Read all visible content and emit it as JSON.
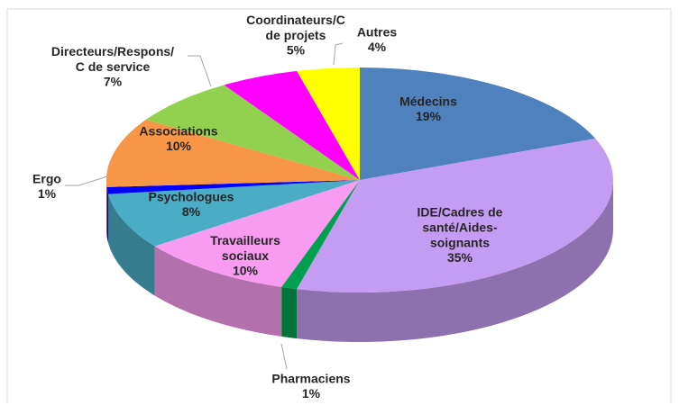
{
  "chart_data": {
    "type": "pie",
    "categories": [
      "Médecins",
      "IDE/Cadres de\nsanté/Aides-\nsoignants",
      "Pharmaciens",
      "Travailleurs\nsociaux",
      "Psychologues",
      "Ergo",
      "Associations",
      "Directeurs/Respons/\nC de service",
      "Coordinateurs/C\nde projets",
      "Autres"
    ],
    "values": [
      19,
      35,
      1,
      10,
      8,
      1,
      10,
      7,
      5,
      4
    ],
    "value_labels": [
      "19%",
      "35%",
      "1%",
      "10%",
      "8%",
      "1%",
      "10%",
      "7%",
      "5%",
      "4%"
    ],
    "colors": [
      "#4f81bd",
      "#c49cf2",
      "#00a050",
      "#f79cf0",
      "#4bacc6",
      "#0000ff",
      "#f79646",
      "#92d050",
      "#ff00ff",
      "#ffff00"
    ]
  }
}
